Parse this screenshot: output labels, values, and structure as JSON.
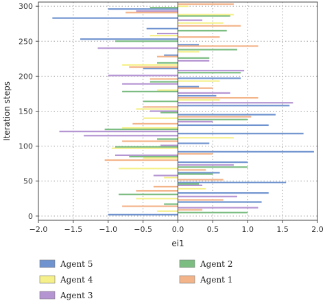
{
  "chart_data": {
    "type": "bar",
    "orientation": "horizontal",
    "title": "",
    "xlabel": "ei1",
    "ylabel": "Iteration steps",
    "xlim": [
      -2.0,
      2.0
    ],
    "ylim": [
      -6,
      306
    ],
    "xticks": [
      -2.0,
      -1.5,
      -1.0,
      -0.5,
      0.0,
      0.5,
      1.0,
      1.5,
      2.0
    ],
    "xtick_labels": [
      "−2.0",
      "−1.5",
      "−1.0",
      "−0.5",
      "0.0",
      "0.5",
      "1.0",
      "1.5",
      "2.0"
    ],
    "yticks": [
      0,
      50,
      100,
      150,
      200,
      250,
      300
    ],
    "ytick_labels": [
      "0",
      "50",
      "100",
      "150",
      "200",
      "250",
      "300"
    ],
    "grid": true,
    "legend_position": "bottom",
    "series": [
      {
        "name": "Agent 5",
        "color": "#6f93cf",
        "data": [
          [
            2,
            -1.0
          ],
          [
            20,
            1.2
          ],
          [
            33,
            1.3
          ],
          [
            48,
            1.55
          ],
          [
            62,
            0.6
          ],
          [
            77,
            1.0
          ],
          [
            92,
            1.95
          ],
          [
            104,
            0.45
          ],
          [
            118,
            1.8
          ],
          [
            130,
            1.3
          ],
          [
            145,
            1.4
          ],
          [
            158,
            1.6
          ],
          [
            172,
            0.55
          ],
          [
            185,
            0.3
          ],
          [
            197,
            0.9
          ],
          [
            211,
            -0.5
          ],
          [
            230,
            -0.2
          ],
          [
            245,
            0.3
          ],
          [
            253,
            -1.4
          ],
          [
            268,
            -0.45
          ],
          [
            283,
            -1.8
          ],
          [
            296,
            -1.0
          ]
        ]
      },
      {
        "name": "Agent 4",
        "color": "#f5f08a",
        "data": [
          [
            7,
            -0.3
          ],
          [
            25,
            -0.6
          ],
          [
            39,
            0.4
          ],
          [
            55,
            -0.2
          ],
          [
            68,
            -0.85
          ],
          [
            83,
            -0.5
          ],
          [
            97,
            -0.95
          ],
          [
            112,
            0.8
          ],
          [
            126,
            -0.8
          ],
          [
            140,
            -0.5
          ],
          [
            153,
            -0.6
          ],
          [
            166,
            0.6
          ],
          [
            180,
            -0.3
          ],
          [
            193,
            0.6
          ],
          [
            216,
            -0.8
          ],
          [
            235,
            0.3
          ],
          [
            258,
            -0.4
          ],
          [
            276,
            0.65
          ],
          [
            288,
            0.8
          ],
          [
            300,
            0.15
          ]
        ]
      },
      {
        "name": "Agent 3",
        "color": "#b594d2",
        "data": [
          [
            12,
            1.15
          ],
          [
            28,
            0.85
          ],
          [
            44,
            0.35
          ],
          [
            58,
            -0.35
          ],
          [
            73,
            0.8
          ],
          [
            87,
            -0.9
          ],
          [
            101,
            -0.25
          ],
          [
            115,
            -1.35
          ],
          [
            121,
            -1.7
          ],
          [
            135,
            0.5
          ],
          [
            150,
            -0.4
          ],
          [
            162,
            1.65
          ],
          [
            176,
            0.75
          ],
          [
            189,
            -0.8
          ],
          [
            201,
            -1.0
          ],
          [
            208,
            0.95
          ],
          [
            222,
            0.45
          ],
          [
            240,
            -1.15
          ],
          [
            261,
            -0.3
          ],
          [
            280,
            0.35
          ],
          [
            293,
            -0.6
          ]
        ]
      },
      {
        "name": "Agent 2",
        "color": "#7cbd82",
        "data": [
          [
            5,
            1.0
          ],
          [
            17,
            -0.2
          ],
          [
            31,
            -0.85
          ],
          [
            46,
            0.3
          ],
          [
            60,
            0.5
          ],
          [
            70,
            1.0
          ],
          [
            85,
            -0.7
          ],
          [
            99,
            -0.9
          ],
          [
            110,
            -0.3
          ],
          [
            124,
            -1.05
          ],
          [
            138,
            1.0
          ],
          [
            148,
            -0.25
          ],
          [
            164,
            -0.5
          ],
          [
            178,
            -0.8
          ],
          [
            192,
            -0.4
          ],
          [
            205,
            0.9
          ],
          [
            219,
            -0.3
          ],
          [
            226,
            0.45
          ],
          [
            238,
            0.85
          ],
          [
            250,
            -0.9
          ],
          [
            265,
            0.7
          ],
          [
            286,
            0.75
          ],
          [
            298,
            -0.4
          ]
        ]
      },
      {
        "name": "Agent 1",
        "color": "#f3b48a",
        "data": [
          [
            9,
            0.35
          ],
          [
            14,
            -0.8
          ],
          [
            23,
            0.65
          ],
          [
            36,
            -0.6
          ],
          [
            42,
            -0.35
          ],
          [
            52,
            0.65
          ],
          [
            66,
            0.4
          ],
          [
            80,
            -1.05
          ],
          [
            89,
            0.5
          ],
          [
            107,
            -0.8
          ],
          [
            132,
            -0.65
          ],
          [
            142,
            1.05
          ],
          [
            156,
            -0.5
          ],
          [
            169,
            1.15
          ],
          [
            183,
            0.5
          ],
          [
            196,
            -0.4
          ],
          [
            213,
            -0.7
          ],
          [
            228,
            -0.3
          ],
          [
            243,
            1.15
          ],
          [
            256,
            0.6
          ],
          [
            272,
            0.9
          ],
          [
            291,
            -0.75
          ],
          [
            303,
            0.8
          ]
        ]
      }
    ],
    "legend_order": [
      "Agent 5",
      "Agent 2",
      "Agent 4",
      "Agent 1",
      "Agent 3"
    ]
  }
}
